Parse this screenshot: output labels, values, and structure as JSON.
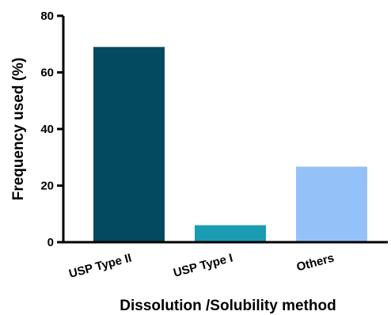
{
  "chart_data": {
    "type": "bar",
    "title": "",
    "categories": [
      "USP Type II",
      "USP Type I",
      "Others"
    ],
    "values": [
      69,
      6,
      26.7
    ],
    "colors": [
      "#034a5e",
      "#1a9cb3",
      "#94c2f8"
    ],
    "xlabel": "Dissolution /Solubility method",
    "ylabel": "Frequency used (%)",
    "ylim": [
      0,
      80
    ],
    "yticks": [
      0,
      20,
      40,
      60,
      80
    ],
    "grid": false,
    "legend": "none"
  }
}
